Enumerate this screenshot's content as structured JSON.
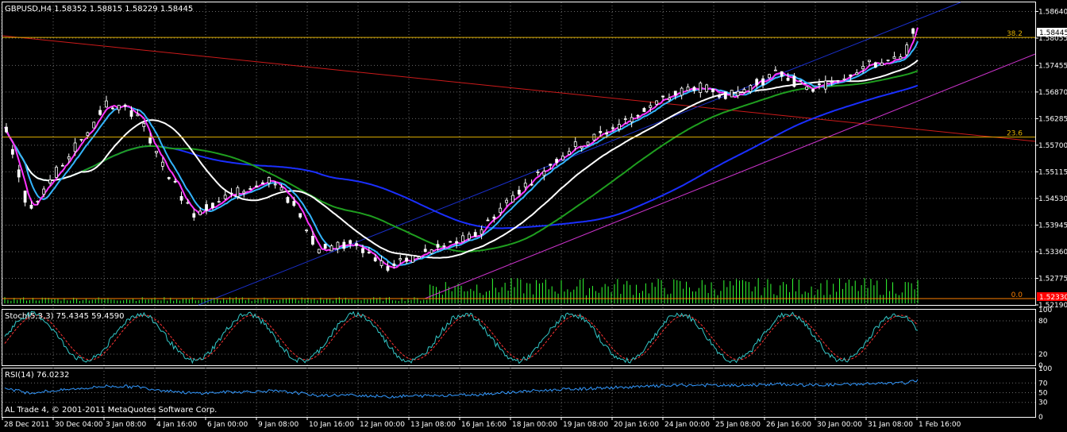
{
  "window": {
    "symbol_header": "GBPUSD,H4  1.58352 1.58815 1.58229 1.58445",
    "copyright": "AL Trade 4, © 2001-2011 MetaQuotes Software Corp."
  },
  "price_axis": {
    "ticks": [
      "1.58640",
      "1.58055",
      "1.57455",
      "1.56870",
      "1.56285",
      "1.55700",
      "1.55115",
      "1.54530",
      "1.53945",
      "1.53360",
      "1.52775",
      "1.52190"
    ],
    "current_price_label": "1.58445",
    "low_marker_label": "1.52330"
  },
  "time_axis": {
    "labels": [
      "28 Dec 2011",
      "30 Dec 04:00",
      "3 Jan 08:00",
      "4 Jan 16:00",
      "6 Jan 00:00",
      "9 Jan 08:00",
      "10 Jan 16:00",
      "12 Jan 00:00",
      "13 Jan 08:00",
      "16 Jan 16:00",
      "18 Jan 00:00",
      "19 Jan 08:00",
      "20 Jan 16:00",
      "24 Jan 00:00",
      "25 Jan 08:00",
      "26 Jan 16:00",
      "30 Jan 00:00",
      "31 Jan 08:00",
      "1 Feb 16:00"
    ]
  },
  "fibonacci": {
    "levels": [
      {
        "label": "38.2",
        "price": 1.5807
      },
      {
        "label": "23.6",
        "price": 1.5588
      },
      {
        "label": "0.0",
        "price": 1.5233
      }
    ]
  },
  "stoch_panel": {
    "header": "Stoch(5,3,3) 75.4345 59.4590",
    "ticks": [
      "100",
      "80",
      "20",
      "0"
    ]
  },
  "rsi_panel": {
    "header": "RSI(14) 76.0232",
    "ticks": [
      "100",
      "70",
      "50",
      "30",
      "0"
    ]
  },
  "colors": {
    "candle": "#ffffff",
    "grid": "#6a6a6a",
    "fib": "#e0b000",
    "fib_base": "#ff8000",
    "ma_fast": "#ff33ff",
    "ma_mid": "#33b5ff",
    "ma_slow_white": "#ffffff",
    "ma_green": "#1f9e1f",
    "ma_blue": "#1a2fff",
    "channel_blue": "#1a2fcc",
    "channel_red": "#cc1a1a",
    "channel_magenta": "#cc33cc",
    "volume": "#33ff33",
    "stoch_main": "#33c8c8",
    "stoch_signal": "#ff3333",
    "rsi": "#3399ff"
  }
}
